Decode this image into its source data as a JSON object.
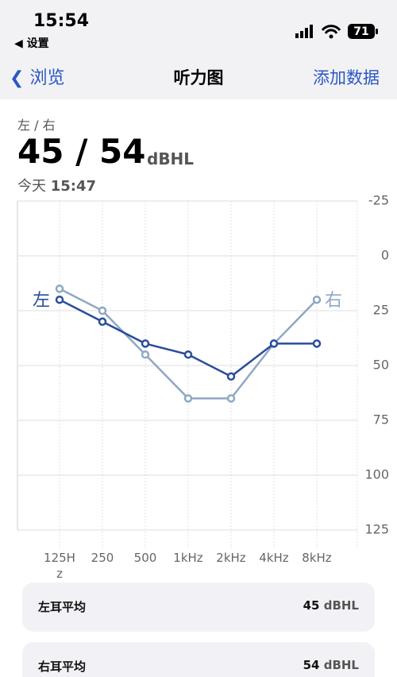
{
  "status_bar": {
    "time": "15:54",
    "back": "设置",
    "battery": "71"
  },
  "nav": {
    "back": "浏览",
    "title": "听力图",
    "action": "添加数据"
  },
  "summary": {
    "label": "左 / 右",
    "value": "45 / 54",
    "unit": "dBHL",
    "day": "今天",
    "time": "15:47"
  },
  "chart_data": {
    "type": "line",
    "categories": [
      "125Hz",
      "250",
      "500",
      "1kHz",
      "2kHz",
      "4kHz",
      "8kHz"
    ],
    "series": [
      {
        "name": "右",
        "color": "#8fa7c4",
        "values": [
          15,
          25,
          45,
          65,
          65,
          40,
          20
        ]
      },
      {
        "name": "左",
        "color": "#2a4d9c",
        "values": [
          20,
          30,
          40,
          45,
          55,
          40,
          40
        ]
      }
    ],
    "ylim": [
      -25,
      125
    ],
    "y_inverted": true,
    "yticks": [
      -25,
      0,
      25,
      50,
      75,
      100,
      125
    ],
    "grid": true
  },
  "averages": [
    {
      "label": "左耳平均",
      "value": "45",
      "unit": "dBHL"
    },
    {
      "label": "右耳平均",
      "value": "54",
      "unit": "dBHL"
    }
  ]
}
